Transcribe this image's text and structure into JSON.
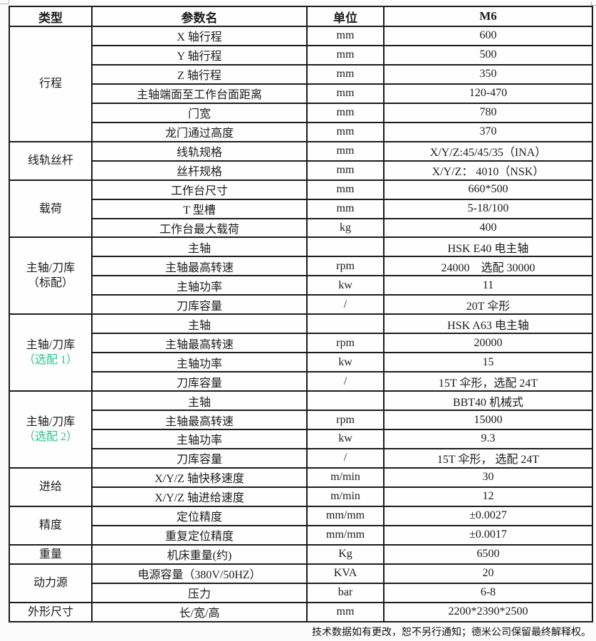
{
  "colors": {
    "option_green": "#2fc487",
    "border": "#1c1c1c",
    "background": "#fbfbfb"
  },
  "footer": {
    "note": "技术数据如有更改，恕不另行通知；德米公司保留最终解释权。"
  },
  "table": {
    "headers": [
      "类型",
      "参数名",
      "单位",
      "M6"
    ],
    "groups": [
      {
        "category": [
          {
            "text": "行程",
            "green": false
          }
        ],
        "rows": [
          [
            "X 轴行程",
            "mm",
            "600"
          ],
          [
            "Y 轴行程",
            "mm",
            "500"
          ],
          [
            "Z 轴行程",
            "mm",
            "350"
          ],
          [
            "主轴端面至工作台面距离",
            "mm",
            "120-470"
          ],
          [
            "门宽",
            "mm",
            "780"
          ],
          [
            "龙门通过高度",
            "mm",
            "370"
          ]
        ]
      },
      {
        "category": [
          {
            "text": "线轨丝杆",
            "green": false
          }
        ],
        "rows": [
          [
            "线轨规格",
            "mm",
            "X/Y/Z:45/45/35（INA）"
          ],
          [
            "丝杆规格",
            "mm",
            "X/Y/Z： 4010（NSK）"
          ]
        ]
      },
      {
        "category": [
          {
            "text": "载荷",
            "green": false
          }
        ],
        "rows": [
          [
            "工作台尺寸",
            "mm",
            "660*500"
          ],
          [
            "T 型槽",
            "mm",
            "5-18/100"
          ],
          [
            "工作台最大载荷",
            "kg",
            "400"
          ]
        ]
      },
      {
        "category": [
          {
            "text": "主轴/刀库",
            "green": false
          },
          {
            "text": "（标配）",
            "green": false
          }
        ],
        "rows": [
          [
            "主轴",
            "",
            "HSK E40 电主轴"
          ],
          [
            "主轴最高转速",
            "rpm",
            "24000　选配 30000"
          ],
          [
            "主轴功率",
            "kw",
            "11"
          ],
          [
            "刀库容量",
            "/",
            "20T 伞形"
          ]
        ]
      },
      {
        "category": [
          {
            "text": "主轴/刀库",
            "green": false
          },
          {
            "text": "（选配 1）",
            "green": true
          }
        ],
        "rows": [
          [
            "主轴",
            "",
            "HSK A63 电主轴"
          ],
          [
            "主轴最高转速",
            "rpm",
            "20000"
          ],
          [
            "主轴功率",
            "kw",
            "15"
          ],
          [
            "刀库容量",
            "/",
            "15T 伞形，选配 24T"
          ]
        ]
      },
      {
        "category": [
          {
            "text": "主轴/刀库",
            "green": false
          },
          {
            "text": "（选配 2）",
            "green": true
          }
        ],
        "rows": [
          [
            "主轴",
            "",
            "BBT40 机械式"
          ],
          [
            "主轴最高转速",
            "rpm",
            "15000"
          ],
          [
            "主轴功率",
            "kw",
            "9.3"
          ],
          [
            "刀库容量",
            "/",
            "15T 伞形， 选配 24T"
          ]
        ]
      },
      {
        "category": [
          {
            "text": "进给",
            "green": false
          }
        ],
        "rows": [
          [
            "X/Y/Z 轴快移速度",
            "m/min",
            "30"
          ],
          [
            "X/Y/Z 轴进给速度",
            "m/min",
            "12"
          ]
        ]
      },
      {
        "category": [
          {
            "text": "精度",
            "green": false
          }
        ],
        "rows": [
          [
            "定位精度",
            "mm/mm",
            "±0.0027"
          ],
          [
            "重复定位精度",
            "mm/mm",
            "±0.0017"
          ]
        ]
      },
      {
        "category": [
          {
            "text": "重量",
            "green": false
          }
        ],
        "rows": [
          [
            "机床重量(约)",
            "Kg",
            "6500"
          ]
        ]
      },
      {
        "category": [
          {
            "text": "动力源",
            "green": false
          }
        ],
        "rows": [
          [
            "电源容量（380V/50HZ）",
            "KVA",
            "20"
          ],
          [
            "压力",
            "bar",
            "6-8"
          ]
        ]
      },
      {
        "category": [
          {
            "text": "外形尺寸",
            "green": false
          }
        ],
        "rows": [
          [
            "长/宽/高",
            "mm",
            "2200*2390*2500"
          ]
        ]
      }
    ]
  }
}
